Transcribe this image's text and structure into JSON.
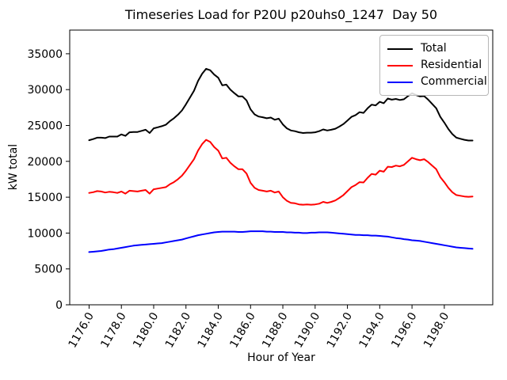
{
  "title": "Timeseries Load for P20U p20uhs0_1247  Day 50",
  "chart_data": {
    "type": "line",
    "title": "Timeseries Load for P20U p20uhs0_1247  Day 50",
    "xlabel": "Hour of Year",
    "ylabel": "kW total",
    "grid": false,
    "legend_position": "upper right",
    "x_start": 1176.0,
    "x_step": 0.25,
    "n_points": 96,
    "xlim": [
      1174.8,
      1201.0
    ],
    "ylim": [
      0,
      38300
    ],
    "x_ticks": [
      1176,
      1178,
      1180,
      1182,
      1184,
      1186,
      1188,
      1190,
      1192,
      1194,
      1196,
      1198
    ],
    "x_tick_labels": [
      "1176.0",
      "1178.0",
      "1180.0",
      "1182.0",
      "1184.0",
      "1186.0",
      "1188.0",
      "1190.0",
      "1192.0",
      "1194.0",
      "1196.0",
      "1198.0"
    ],
    "x_tick_rotation": 60,
    "y_ticks": [
      0,
      5000,
      10000,
      15000,
      20000,
      25000,
      30000,
      35000
    ],
    "y_tick_labels": [
      "0",
      "5000",
      "10000",
      "15000",
      "20000",
      "25000",
      "30000",
      "35000"
    ],
    "series": [
      {
        "name": "Total",
        "color": "#000000",
        "values": [
          22950,
          23100,
          23300,
          23300,
          23250,
          23450,
          23450,
          23450,
          23750,
          23550,
          24050,
          24100,
          24100,
          24250,
          24400,
          23950,
          24600,
          24750,
          24900,
          25100,
          25600,
          26000,
          26500,
          27100,
          27950,
          28900,
          29850,
          31200,
          32200,
          32900,
          32700,
          32100,
          31650,
          30600,
          30700,
          30000,
          29500,
          29050,
          29050,
          28500,
          27250,
          26550,
          26250,
          26150,
          26000,
          26100,
          25800,
          25950,
          25150,
          24600,
          24300,
          24200,
          24050,
          23950,
          24000,
          24000,
          24050,
          24200,
          24450,
          24300,
          24400,
          24550,
          24850,
          25200,
          25700,
          26200,
          26450,
          26850,
          26750,
          27400,
          27900,
          27800,
          28300,
          28100,
          28750,
          28600,
          28700,
          28550,
          28650,
          29100,
          29500,
          29250,
          29050,
          29100,
          28600,
          28000,
          27400,
          26200,
          25400,
          24500,
          23800,
          23300,
          23150,
          23000,
          22900,
          22900
        ]
      },
      {
        "name": "Residential",
        "color": "#ff0000",
        "values": [
          15600,
          15700,
          15850,
          15800,
          15650,
          15750,
          15700,
          15600,
          15800,
          15500,
          15900,
          15850,
          15800,
          15900,
          16000,
          15500,
          16100,
          16200,
          16300,
          16400,
          16800,
          17100,
          17500,
          18000,
          18700,
          19500,
          20300,
          21500,
          22400,
          23000,
          22700,
          22000,
          21500,
          20400,
          20500,
          19800,
          19300,
          18900,
          18900,
          18300,
          17000,
          16300,
          16000,
          15900,
          15800,
          15900,
          15650,
          15800,
          15000,
          14500,
          14200,
          14150,
          14000,
          13950,
          14000,
          13950,
          14000,
          14100,
          14350,
          14200,
          14350,
          14550,
          14900,
          15300,
          15850,
          16400,
          16700,
          17100,
          17050,
          17700,
          18250,
          18150,
          18700,
          18550,
          19250,
          19200,
          19400,
          19300,
          19500,
          20000,
          20500,
          20300,
          20150,
          20300,
          19900,
          19400,
          18900,
          17800,
          17100,
          16300,
          15700,
          15300,
          15200,
          15100,
          15050,
          15100
        ]
      },
      {
        "name": "Commercial",
        "color": "#0000ff",
        "values": [
          7350,
          7400,
          7450,
          7500,
          7600,
          7700,
          7750,
          7850,
          7950,
          8050,
          8150,
          8250,
          8300,
          8350,
          8400,
          8450,
          8500,
          8550,
          8600,
          8700,
          8800,
          8900,
          9000,
          9100,
          9250,
          9400,
          9550,
          9700,
          9800,
          9900,
          10000,
          10100,
          10150,
          10200,
          10200,
          10200,
          10200,
          10150,
          10150,
          10200,
          10250,
          10250,
          10250,
          10250,
          10200,
          10200,
          10150,
          10150,
          10150,
          10100,
          10100,
          10050,
          10050,
          10000,
          10000,
          10050,
          10050,
          10100,
          10100,
          10100,
          10050,
          10000,
          9950,
          9900,
          9850,
          9800,
          9750,
          9750,
          9700,
          9700,
          9650,
          9650,
          9600,
          9550,
          9500,
          9400,
          9300,
          9250,
          9150,
          9100,
          9000,
          8950,
          8900,
          8800,
          8700,
          8600,
          8500,
          8400,
          8300,
          8200,
          8100,
          8000,
          7950,
          7900,
          7850,
          7800
        ]
      }
    ]
  }
}
